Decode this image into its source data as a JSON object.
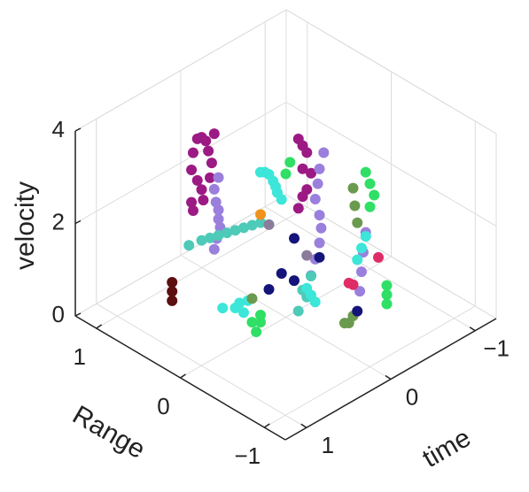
{
  "chart_data": {
    "type": "scatter3d",
    "xlabel": "time",
    "ylabel": "Range",
    "zlabel": "velocity",
    "xlim": [
      -1.25,
      1.25
    ],
    "ylim": [
      -1.25,
      1.25
    ],
    "zlim": [
      0,
      4
    ],
    "xticks": [
      {
        "value": -1,
        "label": "−1"
      },
      0,
      1
    ],
    "yticks": [
      {
        "value": -1,
        "label": "−1"
      },
      0,
      1
    ],
    "zticks": [
      0,
      2,
      4
    ],
    "grid": true,
    "series": [
      {
        "color": "#9c1a84",
        "x": [
          0.55,
          0.5,
          0.45,
          0.42,
          0.38,
          0.6,
          0.62,
          0.55,
          0.5,
          0.62,
          0.6,
          0.48,
          0.4,
          0.35
        ],
        "y": [
          0.5,
          0.5,
          0.5,
          0.5,
          0.5,
          0.5,
          0.5,
          0.5,
          0.5,
          0.5,
          0.5,
          0.5,
          0.5,
          0.5
        ],
        "z": [
          3.9,
          3.88,
          3.75,
          3.5,
          3.2,
          3.65,
          3.3,
          3.0,
          2.75,
          2.6,
          2.4,
          2.5,
          2.9,
          3.8
        ]
      },
      {
        "color": "#9c1a84",
        "x": [
          -0.15,
          -0.2,
          -0.25,
          -0.2,
          -0.3,
          -0.25,
          -0.2,
          -0.15
        ],
        "y": [
          0,
          0,
          0,
          0,
          0,
          0,
          0,
          0
        ],
        "z": [
          3.7,
          3.5,
          3.3,
          3.0,
          2.8,
          2.5,
          2.4,
          2.2
        ]
      },
      {
        "color": "#9a80dc",
        "x": [
          0.35,
          0.33,
          0.3,
          0.3,
          0.28,
          0.32,
          0.35,
          0.3
        ],
        "y": [
          0.5,
          0.5,
          0.5,
          0.5,
          0.5,
          0.5,
          0.5,
          0.5
        ],
        "z": [
          2.6,
          2.3,
          2.1,
          1.9,
          1.7,
          1.5,
          1.3,
          2.8
        ]
      },
      {
        "color": "#9a80dc",
        "x": [
          -0.35,
          -0.3,
          -0.28,
          -0.25,
          -0.3,
          -0.32,
          -0.3,
          -0.25,
          -0.2,
          -0.15
        ],
        "y": [
          -0.1,
          -0.1,
          -0.1,
          -0.1,
          -0.1,
          -0.1,
          -0.1,
          -0.1,
          -0.1,
          -0.1
        ],
        "z": [
          3.3,
          3.0,
          2.7,
          2.4,
          2.0,
          1.7,
          1.4,
          1.1,
          0.8,
          0.5
        ]
      },
      {
        "color": "#9a80dc",
        "x": [
          -0.45,
          -0.42,
          -0.4,
          -0.38
        ],
        "y": [
          -0.5,
          -0.5,
          -0.5,
          -0.5
        ],
        "z": [
          1.9,
          1.5,
          1.1,
          0.7
        ]
      },
      {
        "color": "#4ecab8",
        "x": [
          0.65,
          0.5,
          0.4,
          0.3,
          0.2,
          0.1,
          0.0,
          -0.1,
          -0.2
        ],
        "y": [
          0.5,
          0.5,
          0.5,
          0.5,
          0.5,
          0.5,
          0.5,
          0.5,
          0.5
        ],
        "z": [
          1.7,
          1.65,
          1.6,
          1.55,
          1.5,
          1.45,
          1.4,
          1.35,
          1.3
        ]
      },
      {
        "color": "#4ecab8",
        "x": [
          -0.1,
          0.0,
          -0.05,
          0.05
        ],
        "y": [
          -0.2,
          -0.2,
          -0.2,
          -0.2
        ],
        "z": [
          1.0,
          0.8,
          0.6,
          0.4
        ]
      },
      {
        "color": "#3ce6d8",
        "x": [
          0.3,
          0.25,
          0.2,
          0.15,
          0.12,
          0.1,
          0.05
        ],
        "y": [
          0,
          0,
          0,
          0,
          0,
          0,
          0
        ],
        "z": [
          3.45,
          3.4,
          3.3,
          3.1,
          2.95,
          2.8,
          2.6
        ]
      },
      {
        "color": "#3ce6d8",
        "x": [
          0.45,
          0.35,
          0.3,
          0.25,
          0.2
        ],
        "y": [
          0.3,
          0.25,
          0.2,
          0.3,
          0.25
        ],
        "z": [
          0.35,
          0.3,
          0.2,
          0.25,
          0.3
        ]
      },
      {
        "color": "#3ce6d8",
        "x": [
          -0.55,
          -0.5,
          -0.45
        ],
        "y": [
          -0.4,
          -0.4,
          -0.4
        ],
        "z": [
          1.6,
          1.4,
          1.2
        ]
      },
      {
        "color": "#3ce6d8",
        "x": [
          0.05,
          0,
          -0.05
        ],
        "y": [
          -0.3,
          -0.3,
          -0.3
        ],
        "z": [
          1.0,
          0.8,
          0.6
        ]
      },
      {
        "color": "#2fdf66",
        "x": [
          -0.45,
          -0.5,
          -0.55,
          -0.5
        ],
        "y": [
          -0.5,
          -0.5,
          -0.5,
          -0.5
        ],
        "z": [
          3.2,
          2.9,
          2.6,
          2.4
        ]
      },
      {
        "color": "#2fdf66",
        "x": [
          -0.05,
          0.0
        ],
        "y": [
          0,
          0
        ],
        "z": [
          3.3,
          3.1
        ]
      },
      {
        "color": "#2fdf66",
        "x": [
          0.3,
          0.25,
          0.2,
          0.35
        ],
        "y": [
          0.1,
          0.05,
          0.1,
          0.0
        ],
        "z": [
          0.1,
          0.1,
          0.15,
          0.05
        ]
      },
      {
        "color": "#2fdf66",
        "x": [
          -0.6,
          -0.6,
          -0.6
        ],
        "y": [
          -0.6,
          -0.6,
          -0.6
        ],
        "z": [
          0.5,
          0.3,
          0.7
        ]
      },
      {
        "color": "#6a9a4e",
        "x": [
          -0.4,
          -0.42,
          -0.45,
          -0.2,
          -0.25,
          -0.3,
          0.2
        ],
        "y": [
          -0.4,
          -0.4,
          -0.4,
          -0.5,
          -0.5,
          -0.5,
          0.2
        ],
        "z": [
          2.8,
          2.4,
          2.0,
          0.2,
          0.15,
          0.25,
          0.4
        ]
      },
      {
        "color": "#14147a",
        "x": [
          0.05,
          0.0,
          -0.1,
          0.1,
          -0.2,
          -0.35
        ],
        "y": [
          0,
          -0.1,
          0,
          0.1,
          -0.2,
          -0.5
        ],
        "z": [
          1.0,
          0.9,
          1.6,
          0.6,
          1.3,
          0.3
        ]
      },
      {
        "color": "#5c1010",
        "x": [
          0.75,
          0.75,
          0.75
        ],
        "y": [
          0.6,
          0.6,
          0.6
        ],
        "z": [
          0.9,
          0.7,
          0.5
        ]
      },
      {
        "color": "#e02c66",
        "x": [
          -0.35,
          -0.6,
          -0.5
        ],
        "y": [
          -0.4,
          -0.5,
          -0.3
        ],
        "z": [
          0.8,
          1.2,
          0.5
        ]
      },
      {
        "color": "#f0921c",
        "x": [
          0.0
        ],
        "y": [
          0.3
        ],
        "z": [
          1.9
        ]
      },
      {
        "color": "#8a7c9a",
        "x": [
          0.1,
          -0.05
        ],
        "y": [
          0.1,
          -0.2
        ],
        "z": [
          2.0,
          1.5
        ]
      }
    ]
  }
}
